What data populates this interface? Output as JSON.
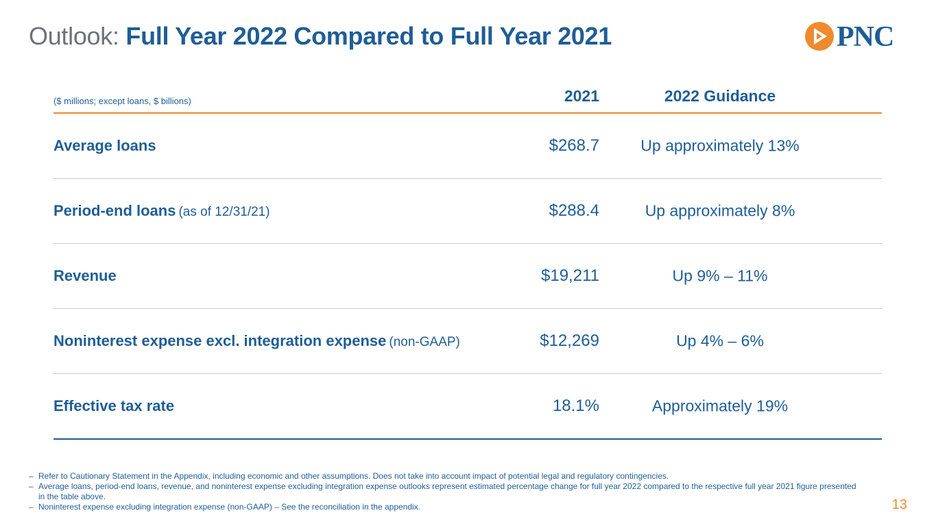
{
  "header": {
    "title_prefix": "Outlook:",
    "title_main": "Full Year 2022 Compared to Full Year 2021",
    "logo_text": "PNC",
    "logo_icon": "pnc-logo-icon",
    "colors": {
      "brand_blue": "#1f5d96",
      "accent_orange": "#ef8a2e",
      "grey": "#6d7278"
    }
  },
  "table": {
    "unit_note": "($ millions; except loans, $ billions)",
    "col_2021": "2021",
    "col_2022": "2022 Guidance",
    "rows": [
      {
        "label": "Average loans",
        "note": "",
        "v2021": "$268.7",
        "v2022": "Up approximately 13%"
      },
      {
        "label": "Period-end loans",
        "note": "(as of 12/31/21)",
        "v2021": "$288.4",
        "v2022": "Up approximately 8%"
      },
      {
        "label": "Revenue",
        "note": "",
        "v2021": "$19,211",
        "v2022": "Up 9%  – 11%"
      },
      {
        "label": "Noninterest expense excl. integration expense",
        "note": "(non-GAAP)",
        "v2021": "$12,269",
        "v2022": "Up 4% – 6%"
      },
      {
        "label": "Effective tax rate",
        "note": "",
        "v2021": "18.1%",
        "v2022": "Approximately 19%"
      }
    ]
  },
  "footnotes": [
    "Refer to Cautionary Statement in the Appendix, including economic and other assumptions. Does not take into account impact of potential legal and regulatory contingencies.",
    "Average loans, period-end loans, revenue, and noninterest expense excluding integration expense outlooks represent estimated percentage change for full year 2022 compared to the respective full year 2021 figure presented in the table above.",
    "Noninterest expense excluding integration expense (non-GAAP) – See the reconciliation in the appendix."
  ],
  "page_number": "13"
}
